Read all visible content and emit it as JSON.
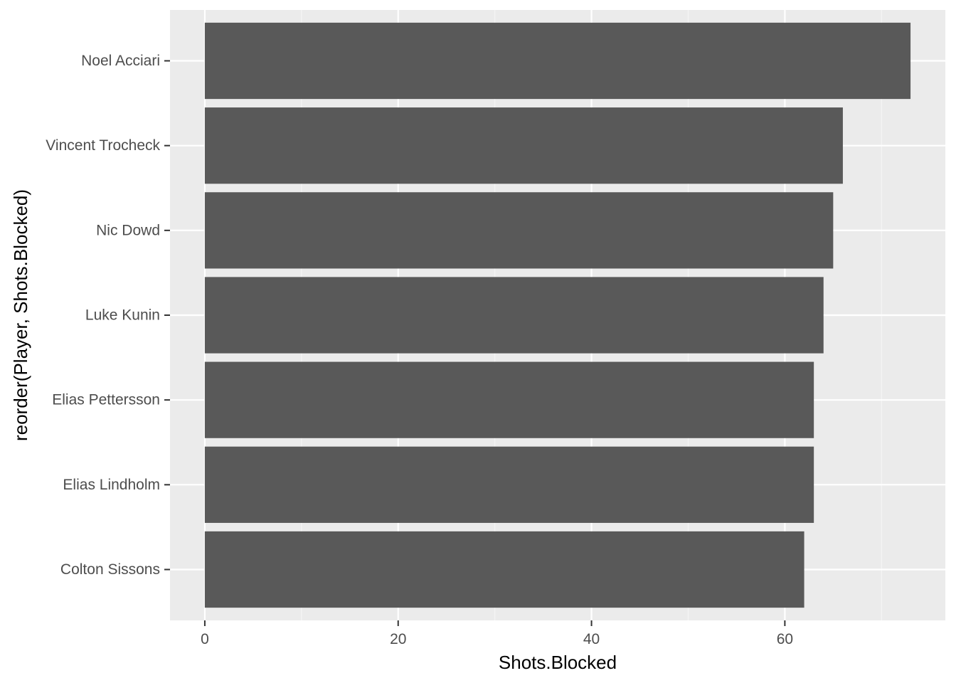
{
  "chart_data": {
    "type": "bar",
    "orientation": "horizontal",
    "title": "",
    "xlabel": "Shots.Blocked",
    "ylabel": "reorder(Player, Shots.Blocked)",
    "categories": [
      "Colton Sissons",
      "Elias Lindholm",
      "Elias Pettersson",
      "Luke Kunin",
      "Nic Dowd",
      "Vincent Trocheck",
      "Noel Acciari"
    ],
    "values": [
      62,
      63,
      63,
      64,
      65,
      66,
      73
    ],
    "xlim": [
      -3.6,
      76.6
    ],
    "x_ticks": [
      0,
      20,
      40,
      60
    ],
    "x_tick_labels": [
      "0",
      "20",
      "40",
      "60"
    ],
    "x_minor_ticks": [
      10,
      30,
      50,
      70
    ],
    "grid": true,
    "legend": "none",
    "colors": {
      "bar": "#595959",
      "panel_background": "#ebebeb",
      "grid_major": "#ffffff",
      "grid_minor": "#f5f5f5",
      "tick_text": "#4d4d4d",
      "axis_title": "#000000",
      "tick_mark": "#333333"
    }
  }
}
